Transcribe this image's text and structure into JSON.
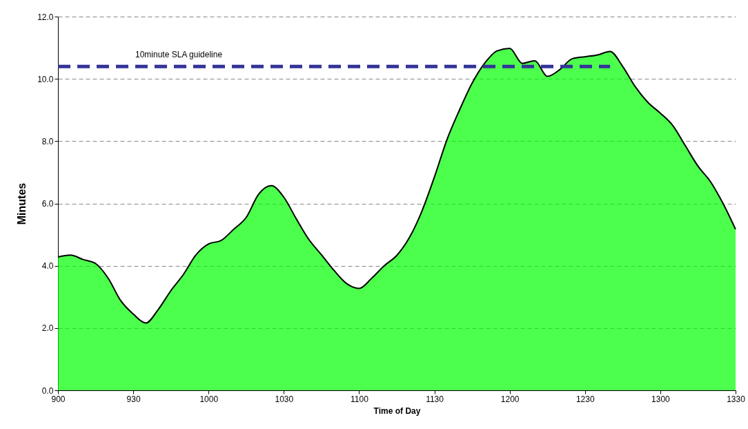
{
  "chart_data": {
    "type": "area",
    "xlabel": "Time of Day",
    "ylabel": "Minutes",
    "categories": [
      "900",
      null,
      null,
      null,
      null,
      null,
      "930",
      null,
      null,
      null,
      null,
      null,
      "1000",
      null,
      null,
      null,
      null,
      null,
      "1030",
      null,
      null,
      null,
      null,
      null,
      "1100",
      null,
      null,
      null,
      null,
      null,
      "1130",
      null,
      null,
      null,
      null,
      null,
      "1200",
      null,
      null,
      null,
      null,
      null,
      "1230",
      null,
      null,
      null,
      null,
      null,
      "1300",
      null,
      null,
      null,
      null,
      null,
      "1330"
    ],
    "ylim": [
      0,
      12
    ],
    "yticks": [
      {
        "value": 0,
        "label": "0.0"
      },
      {
        "value": 2,
        "label": "2.0"
      },
      {
        "value": 4,
        "label": "4.0"
      },
      {
        "value": 6,
        "label": "6.0"
      },
      {
        "value": 8,
        "label": "8.0"
      },
      {
        "value": 10,
        "label": "10.0"
      },
      {
        "value": 12,
        "label": "12.0"
      }
    ],
    "grid": "y",
    "legend": false,
    "series": [
      {
        "type": "area",
        "color": "#00ff00",
        "values": [
          4.28,
          4.34,
          4.2,
          4.07,
          3.6,
          2.88,
          2.45,
          2.16,
          2.6,
          3.2,
          3.72,
          4.35,
          4.7,
          4.81,
          5.17,
          5.55,
          6.3,
          6.57,
          6.2,
          5.5,
          4.84,
          4.35,
          3.85,
          3.43,
          3.27,
          3.6,
          4.0,
          4.33,
          4.9,
          5.75,
          6.85,
          8.05,
          9.0,
          9.86,
          10.5,
          10.9,
          10.98,
          10.5,
          10.58,
          10.08,
          10.3,
          10.65,
          10.71,
          10.77,
          10.88,
          10.4,
          9.75,
          9.25,
          8.9,
          8.5,
          7.85,
          7.2,
          6.7,
          6.0,
          5.17
        ]
      },
      {
        "type": "line",
        "name": "10minute SLA guideline",
        "color": "#333399",
        "line_style": "dashed",
        "values": [
          10.4,
          10.4,
          10.4,
          10.4,
          10.4,
          10.4,
          10.4,
          10.4,
          10.4,
          10.4,
          10.4,
          10.4,
          10.4,
          10.4,
          10.4,
          10.4,
          10.4,
          10.4,
          10.4,
          10.4,
          10.4,
          10.4,
          10.4,
          10.4,
          10.4,
          10.4,
          10.4,
          10.4,
          10.4,
          10.4,
          10.4,
          10.4,
          10.4,
          10.4,
          10.4,
          10.4,
          10.4,
          10.4,
          10.4,
          10.4,
          10.4,
          10.4,
          10.4,
          10.4,
          10.4,
          null,
          null,
          null,
          null,
          null,
          null,
          null,
          null,
          null,
          null
        ]
      }
    ]
  }
}
